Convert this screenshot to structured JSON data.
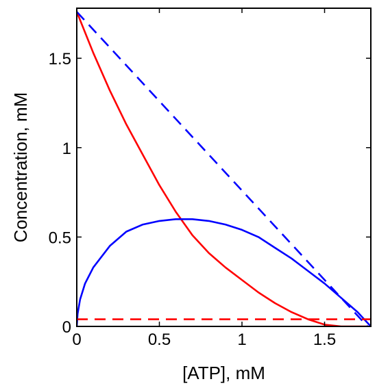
{
  "chart_data": {
    "type": "line",
    "xlabel": "[ATP], mM",
    "ylabel": "Concentration, mM",
    "xlim": [
      0,
      1.78
    ],
    "ylim": [
      0,
      1.78
    ],
    "grid": false,
    "x_ticks": [
      {
        "value": 0,
        "label": "0"
      },
      {
        "value": 0.5,
        "label": "0.5"
      },
      {
        "value": 1,
        "label": "1"
      },
      {
        "value": 1.5,
        "label": "1.5"
      }
    ],
    "y_ticks": [
      {
        "value": 0,
        "label": "0"
      },
      {
        "value": 0.5,
        "label": "0.5"
      },
      {
        "value": 1,
        "label": "1"
      },
      {
        "value": 1.5,
        "label": "1.5"
      }
    ],
    "series": [
      {
        "color": "#ff0000",
        "style": "solid",
        "x": [
          0,
          0.1,
          0.2,
          0.3,
          0.4,
          0.5,
          0.6,
          0.7,
          0.8,
          0.9,
          1.0,
          1.1,
          1.2,
          1.3,
          1.4,
          1.5,
          1.6,
          1.7,
          1.76
        ],
        "y": [
          1.76,
          1.53,
          1.32,
          1.13,
          0.96,
          0.79,
          0.64,
          0.51,
          0.41,
          0.33,
          0.26,
          0.19,
          0.13,
          0.08,
          0.04,
          0.01,
          0.0,
          0.0,
          0.0
        ]
      },
      {
        "color": "#0000ff",
        "style": "solid",
        "x": [
          0,
          0.005,
          0.02,
          0.05,
          0.1,
          0.2,
          0.3,
          0.4,
          0.5,
          0.6,
          0.7,
          0.8,
          0.9,
          1.0,
          1.1,
          1.2,
          1.3,
          1.4,
          1.5,
          1.6,
          1.7,
          1.75,
          1.78
        ],
        "y": [
          0,
          0.07,
          0.15,
          0.24,
          0.33,
          0.45,
          0.53,
          0.57,
          0.59,
          0.6,
          0.6,
          0.59,
          0.57,
          0.54,
          0.5,
          0.44,
          0.38,
          0.31,
          0.24,
          0.16,
          0.08,
          0.03,
          0.0
        ]
      },
      {
        "color": "#0000ff",
        "style": "dashed",
        "x": [
          0,
          1.76
        ],
        "y": [
          1.76,
          0.0
        ]
      },
      {
        "color": "#ff0000",
        "style": "dashed",
        "x": [
          0,
          1.78
        ],
        "y": [
          0.04,
          0.04
        ]
      }
    ]
  }
}
